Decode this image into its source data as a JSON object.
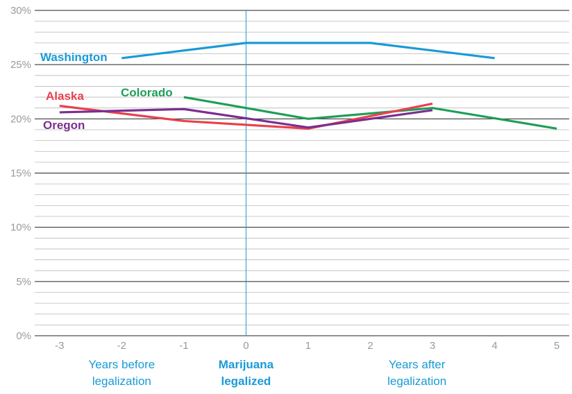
{
  "chart_data": {
    "type": "line",
    "x": [
      -3,
      -2,
      -1,
      0,
      1,
      2,
      3,
      4,
      5
    ],
    "x_tick_labels": [
      "-3",
      "-2",
      "-1",
      "0",
      "1",
      "2",
      "3",
      "4",
      "5"
    ],
    "y_tick_labels": [
      "0%",
      "5%",
      "10%",
      "15%",
      "20%",
      "25%",
      "30%"
    ],
    "ylim": [
      0,
      30
    ],
    "xlim": [
      -3.4,
      5.2
    ],
    "grid": true,
    "y_minor_step": 1,
    "y_major_step": 5,
    "reference_line_x": 0,
    "period_labels": {
      "before": [
        "Years before",
        "legalization"
      ],
      "event": [
        "Marijuana",
        "legalized"
      ],
      "after": [
        "Years after",
        "legalization"
      ]
    },
    "series": [
      {
        "name": "Washington",
        "color": "#1a9ad6",
        "points": [
          [
            -2,
            25.6
          ],
          [
            0,
            27.0
          ],
          [
            2,
            27.0
          ],
          [
            4,
            25.6
          ]
        ]
      },
      {
        "name": "Colorado",
        "color": "#1f9e57",
        "points": [
          [
            -1,
            22.0
          ],
          [
            1,
            20.0
          ],
          [
            3,
            21.0
          ],
          [
            5,
            19.1
          ]
        ]
      },
      {
        "name": "Alaska",
        "color": "#e8414d",
        "points": [
          [
            -3,
            21.2
          ],
          [
            -1,
            19.8
          ],
          [
            1,
            19.1
          ],
          [
            3,
            21.4
          ]
        ]
      },
      {
        "name": "Oregon",
        "color": "#7b2f8f",
        "points": [
          [
            -3,
            20.6
          ],
          [
            -1,
            20.9
          ],
          [
            1,
            19.2
          ],
          [
            3,
            20.8
          ]
        ]
      }
    ],
    "colors": {
      "grid_major": "#222222",
      "grid_minor": "#b8b8b8",
      "tick_text": "#9a9a9a",
      "accent": "#1a9ad6"
    }
  }
}
